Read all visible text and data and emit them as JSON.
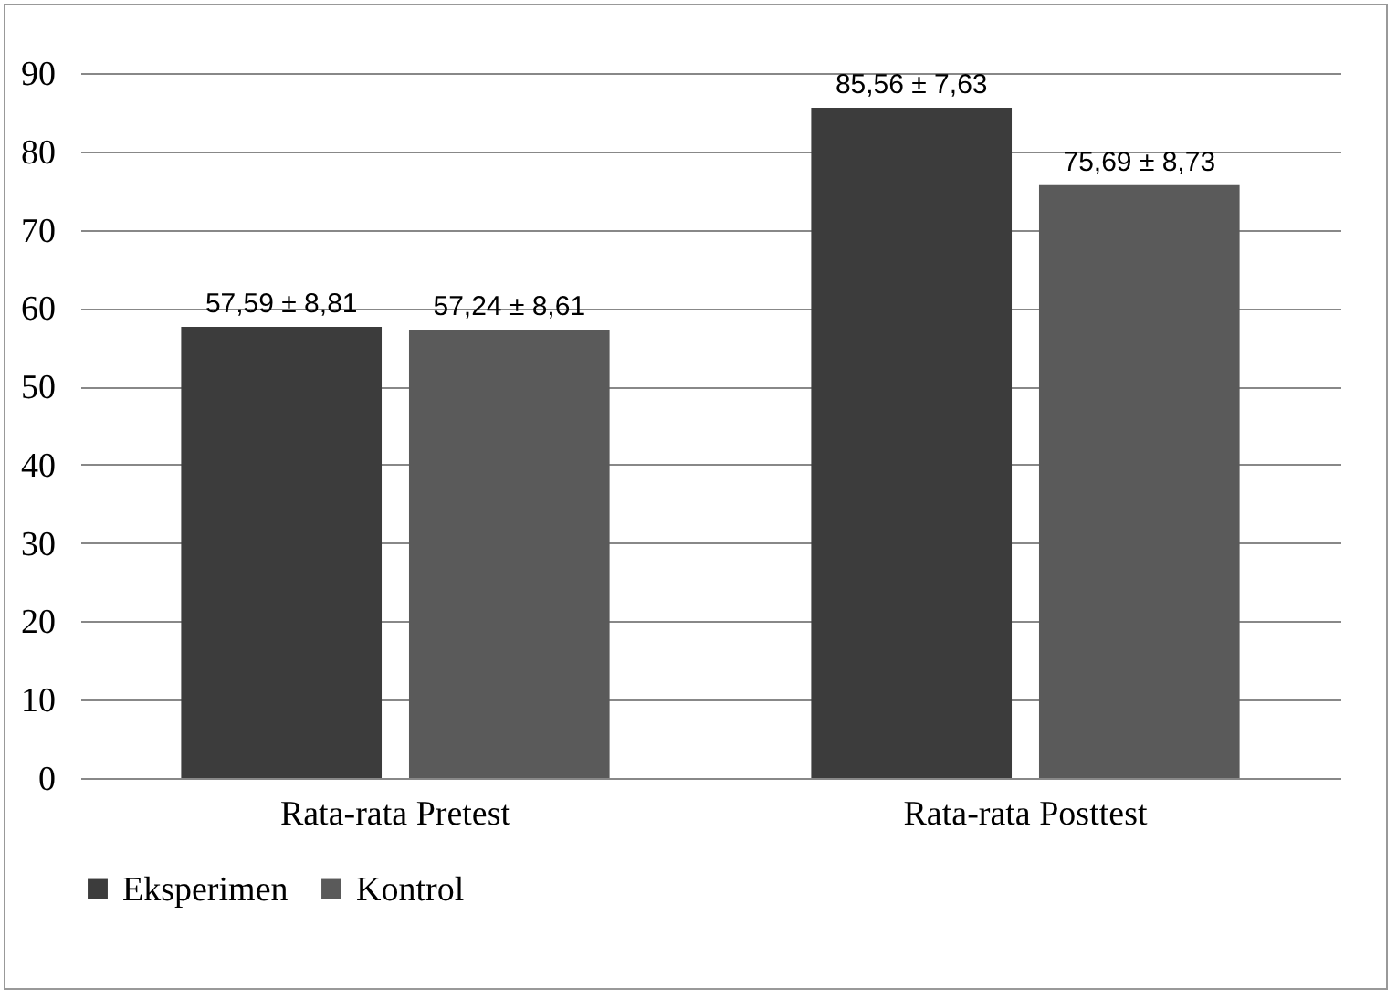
{
  "chart_data": {
    "type": "bar",
    "categories": [
      "Rata-rata Pretest",
      "Rata-rata Posttest"
    ],
    "series": [
      {
        "name": "Eksperimen",
        "color": "#3c3c3c",
        "values": [
          57.59,
          85.56
        ],
        "value_labels": [
          "57,59 ± 8,81",
          "85,56 ± 7,63"
        ]
      },
      {
        "name": "Kontrol",
        "color": "#5a5a5a",
        "values": [
          57.24,
          75.69
        ],
        "value_labels": [
          "57,24 ± 8,61",
          "75,69 ± 8,73"
        ]
      }
    ],
    "ylim": [
      0,
      90
    ],
    "yticks": [
      0,
      10,
      20,
      30,
      40,
      50,
      60,
      70,
      80,
      90
    ],
    "grid": "y",
    "legend": "bottom"
  }
}
